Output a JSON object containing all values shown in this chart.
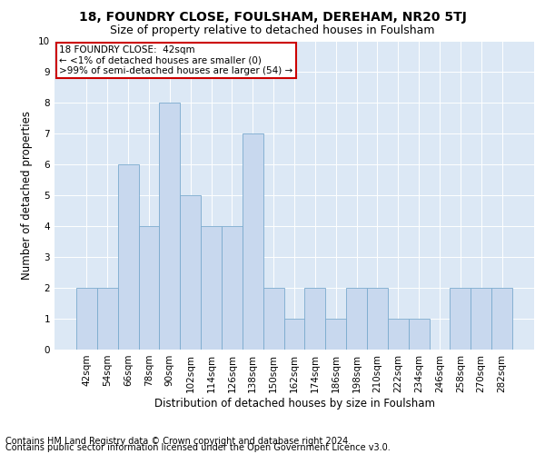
{
  "title": "18, FOUNDRY CLOSE, FOULSHAM, DEREHAM, NR20 5TJ",
  "subtitle": "Size of property relative to detached houses in Foulsham",
  "xlabel": "Distribution of detached houses by size in Foulsham",
  "ylabel": "Number of detached properties",
  "categories": [
    "42sqm",
    "54sqm",
    "66sqm",
    "78sqm",
    "90sqm",
    "102sqm",
    "114sqm",
    "126sqm",
    "138sqm",
    "150sqm",
    "162sqm",
    "174sqm",
    "186sqm",
    "198sqm",
    "210sqm",
    "222sqm",
    "234sqm",
    "246sqm",
    "258sqm",
    "270sqm",
    "282sqm"
  ],
  "values": [
    2,
    2,
    6,
    4,
    8,
    5,
    4,
    4,
    7,
    2,
    1,
    2,
    1,
    2,
    2,
    1,
    1,
    0,
    2,
    2,
    2
  ],
  "bar_color": "#c8d8ee",
  "bar_edge_color": "#7aaace",
  "highlight_edge_color": "#cc0000",
  "annotation_text": "18 FOUNDRY CLOSE:  42sqm\n← <1% of detached houses are smaller (0)\n>99% of semi-detached houses are larger (54) →",
  "annotation_box_color": "white",
  "annotation_box_edge_color": "#cc0000",
  "ylim": [
    0,
    10
  ],
  "yticks": [
    0,
    1,
    2,
    3,
    4,
    5,
    6,
    7,
    8,
    9,
    10
  ],
  "footnote1": "Contains HM Land Registry data © Crown copyright and database right 2024.",
  "footnote2": "Contains public sector information licensed under the Open Government Licence v3.0.",
  "title_fontsize": 10,
  "subtitle_fontsize": 9,
  "xlabel_fontsize": 8.5,
  "ylabel_fontsize": 8.5,
  "tick_fontsize": 7.5,
  "footnote_fontsize": 7,
  "background_color": "#ffffff",
  "plot_background_color": "#dce8f5"
}
